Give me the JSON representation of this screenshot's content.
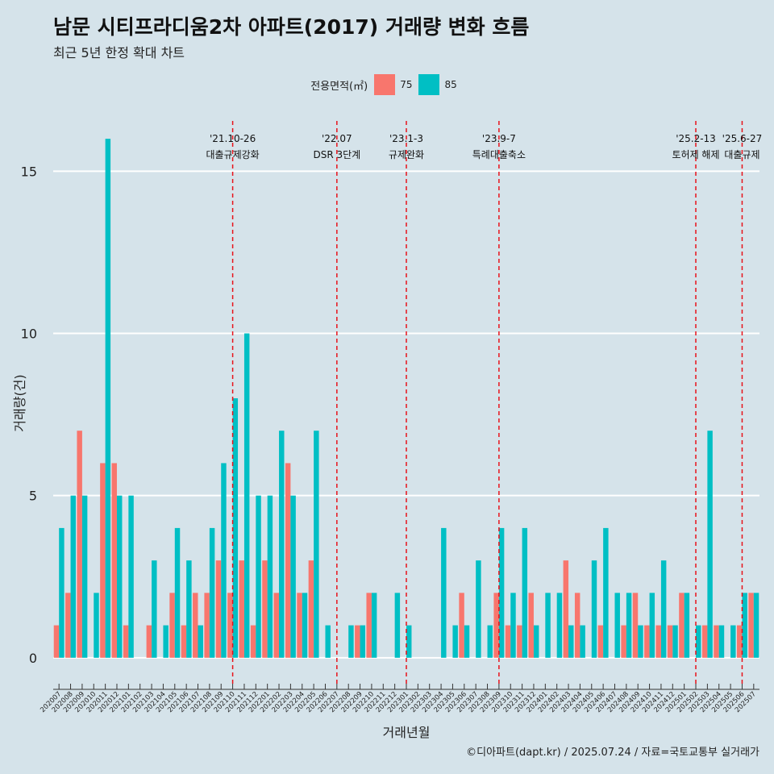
{
  "title": "남문 시티프라디움2차 아파트(2017) 거래량 변화 흐름",
  "subtitle": "최근 5년 한정 확대 차트",
  "footer": "©디아파트(dapt.kr) / 2025.07.24 / 자료=국토교통부 실거래가",
  "legend": {
    "title": "전용면적(㎡)",
    "items": [
      {
        "label": "75",
        "color": "#f8766d"
      },
      {
        "label": "85",
        "color": "#00bfc4"
      }
    ]
  },
  "chart_data": {
    "type": "bar",
    "xlabel": "거래년월",
    "ylabel": "거래량(건)",
    "ylim": [
      -0.8,
      16.6
    ],
    "yticks": [
      0,
      5,
      10,
      15
    ],
    "grid": true,
    "legend_position": "top",
    "categories": [
      "202007",
      "202008",
      "202009",
      "202010",
      "202011",
      "202012",
      "202101",
      "202102",
      "202103",
      "202104",
      "202105",
      "202106",
      "202107",
      "202108",
      "202109",
      "202110",
      "202111",
      "202112",
      "202201",
      "202202",
      "202203",
      "202204",
      "202205",
      "202206",
      "202207",
      "202208",
      "202209",
      "202210",
      "202211",
      "202212",
      "202301",
      "202302",
      "202303",
      "202304",
      "202305",
      "202306",
      "202307",
      "202308",
      "202309",
      "202310",
      "202311",
      "202312",
      "202401",
      "202402",
      "202403",
      "202404",
      "202405",
      "202406",
      "202407",
      "202408",
      "202409",
      "202410",
      "202411",
      "202412",
      "202501",
      "202502",
      "202503",
      "202504",
      "202505",
      "202506",
      "202507"
    ],
    "series": [
      {
        "name": "75",
        "color": "#f8766d",
        "values": [
          1,
          2,
          7,
          0,
          6,
          6,
          1,
          0,
          1,
          0,
          2,
          1,
          2,
          2,
          3,
          2,
          3,
          1,
          3,
          2,
          6,
          2,
          3,
          0,
          0,
          0,
          1,
          2,
          0,
          0,
          0,
          0,
          0,
          0,
          0,
          2,
          0,
          0,
          2,
          1,
          1,
          2,
          0,
          0,
          3,
          2,
          0,
          1,
          0,
          1,
          2,
          1,
          1,
          1,
          2,
          0,
          1,
          1,
          0,
          1,
          2
        ]
      },
      {
        "name": "85",
        "color": "#00bfc4",
        "values": [
          4,
          5,
          5,
          2,
          16,
          5,
          5,
          0,
          3,
          1,
          4,
          3,
          1,
          4,
          6,
          8,
          10,
          5,
          5,
          7,
          5,
          2,
          7,
          1,
          0,
          1,
          1,
          2,
          0,
          2,
          1,
          0,
          0,
          4,
          1,
          1,
          3,
          1,
          4,
          2,
          4,
          1,
          2,
          2,
          1,
          1,
          3,
          4,
          2,
          2,
          1,
          2,
          3,
          1,
          2,
          1,
          7,
          1,
          1,
          2,
          2
        ]
      }
    ],
    "events": [
      {
        "line1": "'21.10-26",
        "line2": "대출규제강화",
        "at": "202110"
      },
      {
        "line1": "'22.07",
        "line2": "DSR 3단계",
        "at": "202207"
      },
      {
        "line1": "'23.1-3",
        "line2": "규제완화",
        "at": "202301"
      },
      {
        "line1": "'23.9-7",
        "line2": "특례대출축소",
        "at": "202309"
      },
      {
        "line1": "'25.2-13",
        "line2": "토허제 해제",
        "at": "202502"
      },
      {
        "line1": "'25.6-27",
        "line2": "대출규제",
        "at": "202506"
      }
    ]
  }
}
